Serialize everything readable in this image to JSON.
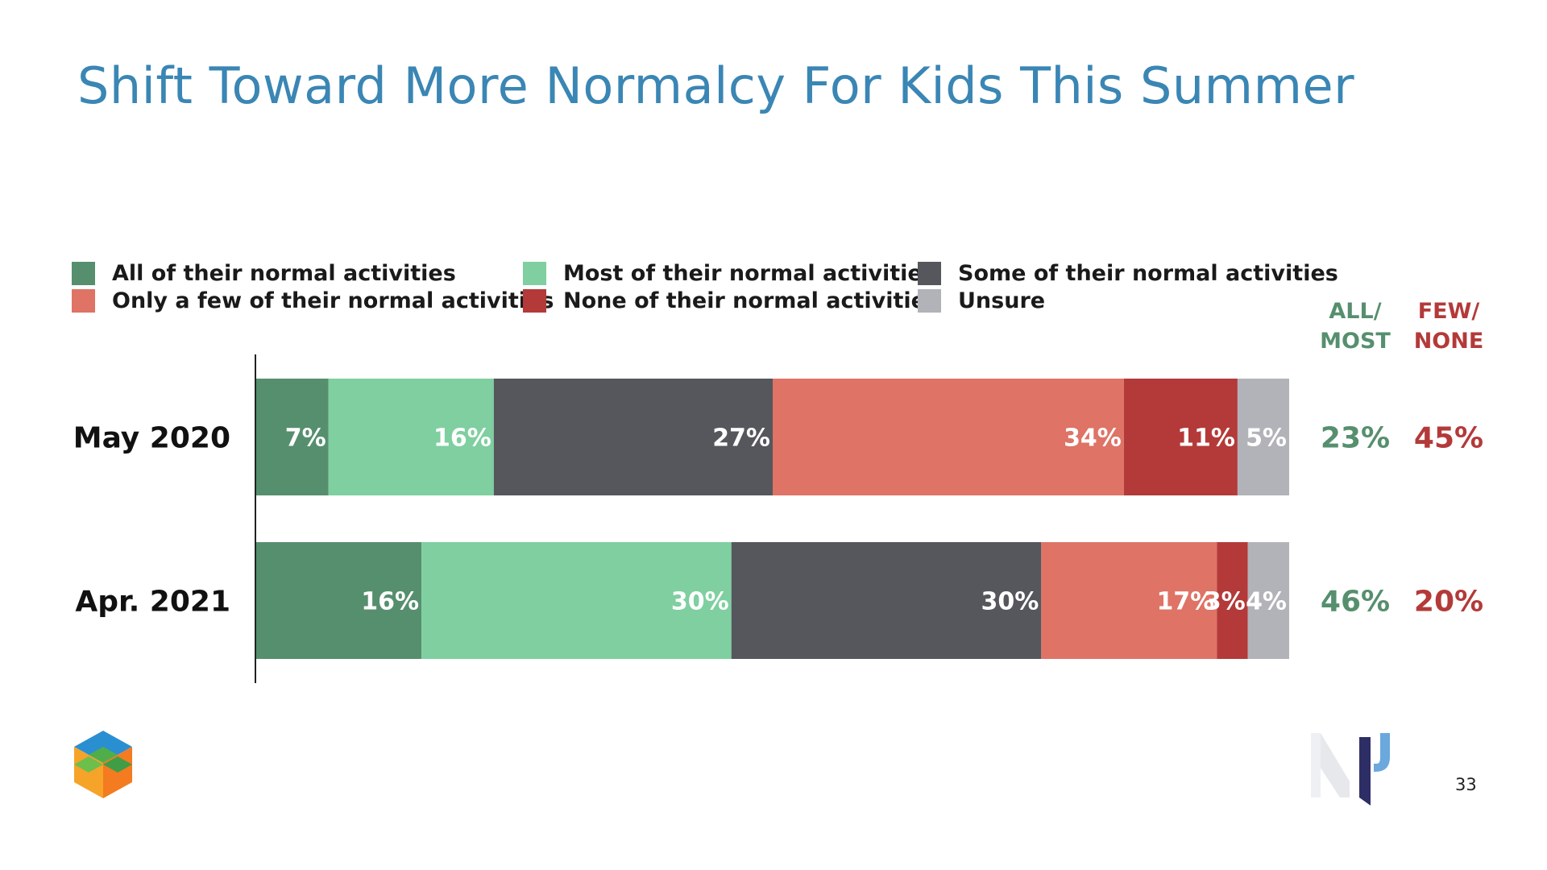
{
  "title": "Shift Toward More Normalcy For Kids This Summer",
  "page_number": "33",
  "legend": [
    {
      "label": "All of their normal activities",
      "color": "#568f6e"
    },
    {
      "label": "Most of their normal activities",
      "color": "#7fcfa0"
    },
    {
      "label": "Some of their normal activities",
      "color": "#55575d"
    },
    {
      "label": "Only a few of their normal activities",
      "color": "#de7366"
    },
    {
      "label": "None of their normal activities",
      "color": "#b33a39"
    },
    {
      "label": "Unsure",
      "color": "#b1b3b8"
    }
  ],
  "summary_headers": {
    "all_most": [
      "ALL/",
      "MOST"
    ],
    "few_none": [
      "FEW/",
      "NONE"
    ],
    "all_most_color": "#568f6e",
    "few_none_color": "#b33a39"
  },
  "chart_data": {
    "type": "bar",
    "orientation": "horizontal",
    "stacked": true,
    "categories": [
      "May 2020",
      "Apr. 2021"
    ],
    "series": [
      {
        "name": "All of their normal activities",
        "values": [
          7,
          16
        ],
        "labels": [
          "7%",
          "16%"
        ]
      },
      {
        "name": "Most of their normal activities",
        "values": [
          16,
          30
        ],
        "labels": [
          "16%",
          "30%"
        ]
      },
      {
        "name": "Some of their normal activities",
        "values": [
          27,
          30
        ],
        "labels": [
          "27%",
          "30%"
        ]
      },
      {
        "name": "Only a few of their normal activities",
        "values": [
          34,
          17
        ],
        "labels": [
          "34%",
          "17%"
        ]
      },
      {
        "name": "None of their normal activities",
        "values": [
          11,
          3
        ],
        "labels": [
          "11%",
          "3%"
        ]
      },
      {
        "name": "Unsure",
        "values": [
          5,
          4
        ],
        "labels": [
          "5%",
          "4%"
        ]
      }
    ],
    "summary": [
      {
        "all_most": "23%",
        "few_none": "45%"
      },
      {
        "all_most": "46%",
        "few_none": "20%"
      }
    ],
    "legend_position": "top",
    "grid": false
  }
}
